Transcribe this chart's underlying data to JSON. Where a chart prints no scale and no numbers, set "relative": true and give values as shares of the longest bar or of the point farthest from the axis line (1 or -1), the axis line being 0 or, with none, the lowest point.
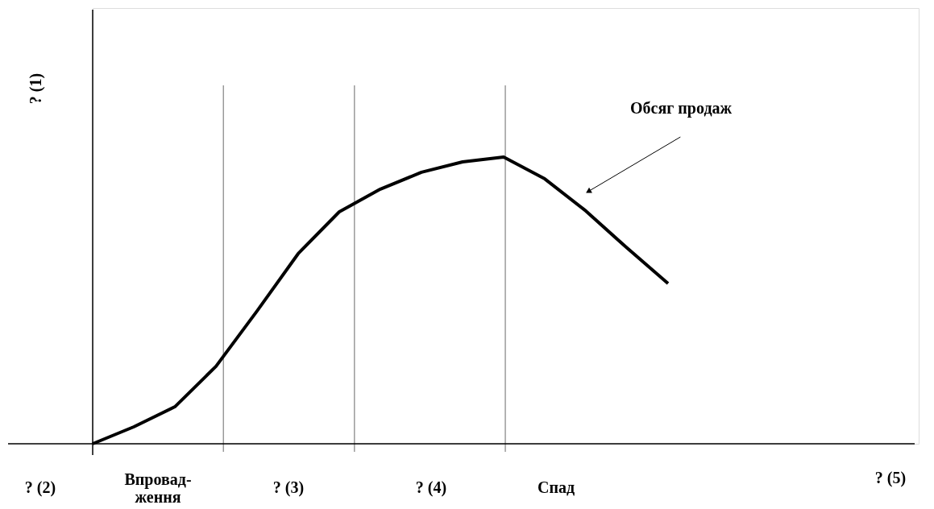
{
  "chart_data": {
    "type": "line",
    "relative": true,
    "ylabel": "? (1)",
    "categories": [
      null,
      null,
      null,
      null,
      null,
      null,
      null,
      null,
      null,
      null,
      null,
      null,
      null,
      null,
      null
    ],
    "series": [
      {
        "name": "Обсяг продаж",
        "color": "#000000",
        "values": [
          0,
          0.059,
          0.129,
          0.27,
          0.463,
          0.663,
          0.809,
          0.888,
          0.947,
          0.983,
          1,
          0.924,
          0.812,
          0.683,
          0.559
        ]
      }
    ],
    "annotations": [
      "? (2)",
      "Впровад-\nження",
      "? (3)",
      "? (4)",
      "Спад",
      "? (5)"
    ],
    "marker": "none",
    "line_style": "solid"
  }
}
